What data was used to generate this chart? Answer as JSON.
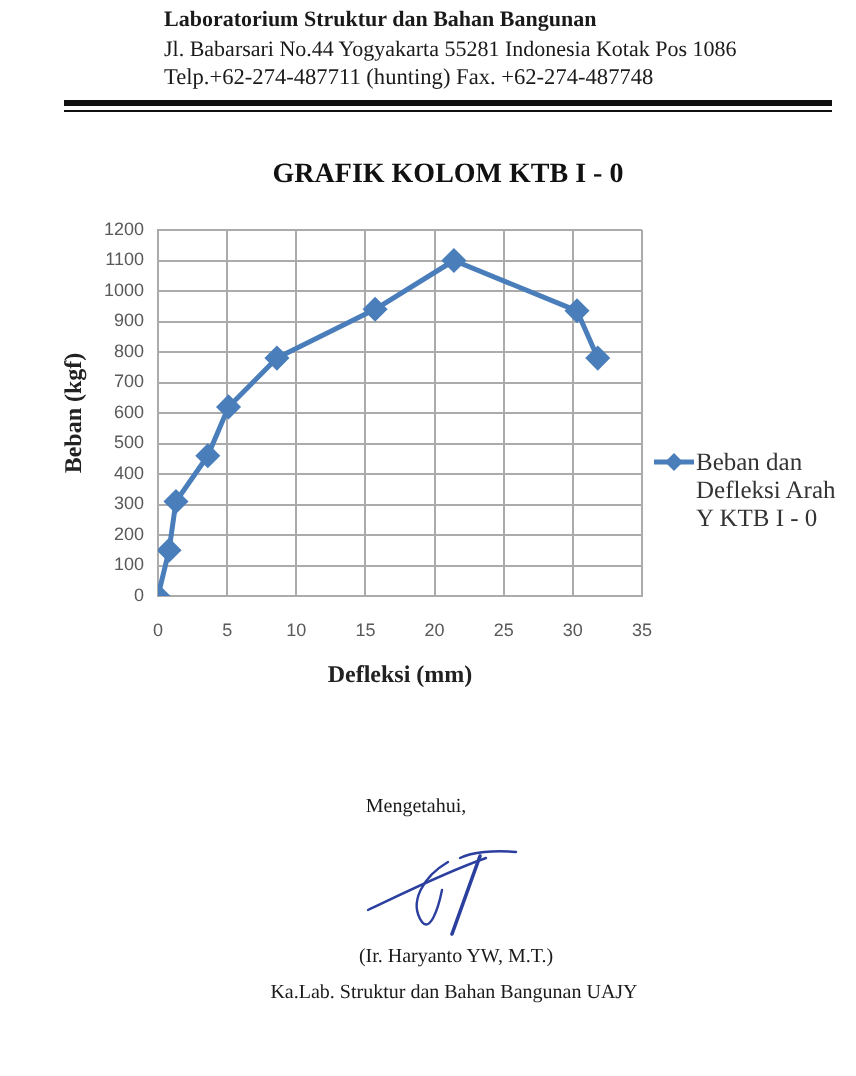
{
  "chart_data": {
    "type": "line",
    "title": "GRAFIK KOLOM KTB I - 0",
    "xlabel": "Defleksi (mm)",
    "ylabel": "Beban (kgf)",
    "x": [
      0,
      0.8,
      1.3,
      3.6,
      5.1,
      8.6,
      15.7,
      21.4,
      30.3,
      31.8
    ],
    "series": [
      {
        "name": "Beban dan Defleksi Arah Y KTB I - 0",
        "color": "#4a7ebb",
        "values": [
          0,
          150,
          310,
          460,
          620,
          780,
          940,
          1100,
          935,
          780
        ]
      }
    ],
    "xlim": [
      0,
      35
    ],
    "xticks": [
      0,
      5,
      10,
      15,
      20,
      25,
      30,
      35
    ],
    "ylim": [
      0,
      1200
    ],
    "yticks": [
      0,
      100,
      200,
      300,
      400,
      500,
      600,
      700,
      800,
      900,
      1000,
      1100,
      1200
    ],
    "grid": true,
    "legend": "right",
    "marker": "diamond",
    "line_style": "solid",
    "annotations": [
      "Laboratorium Struktur dan Bahan Bangunan",
      "Jl. Babarsari No.44 Yogyakarta 55281 Indonesia Kotak Pos 1086",
      "Telp.+62-274-487711 (hunting) Fax. +62-274-487748",
      "Mengetahui,",
      "(Ir. Haryanto YW, M.T.)",
      "Ka.Lab. Struktur dan Bahan Bangunan UAJY"
    ]
  }
}
